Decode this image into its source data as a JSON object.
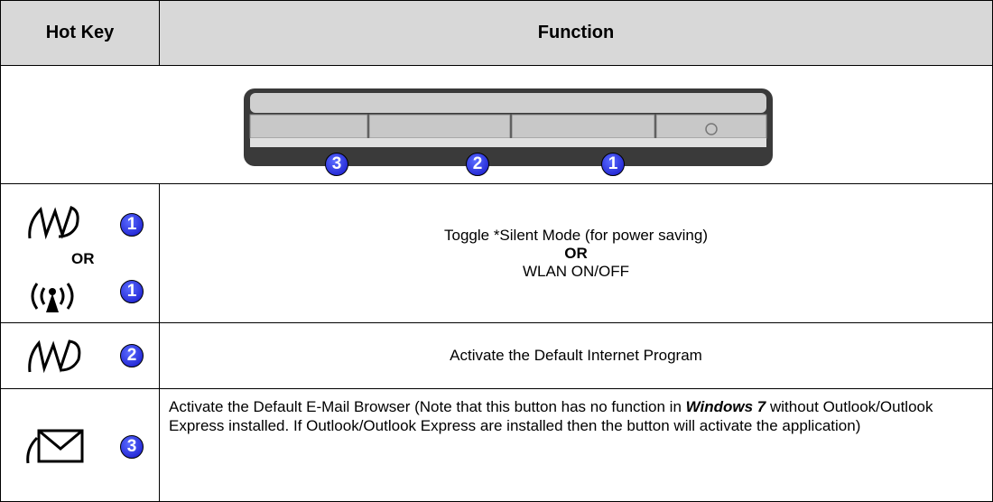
{
  "header": {
    "hot_key": "Hot Key",
    "function": "Function"
  },
  "panel": {
    "badges": [
      "3",
      "2",
      "1"
    ]
  },
  "rows": [
    {
      "hot_key": {
        "badges": [
          "1",
          "1"
        ],
        "separator": "OR"
      },
      "function": [
        "Toggle *Silent Mode (for power saving)",
        "OR",
        "WLAN ON/OFF"
      ]
    },
    {
      "hot_key": {
        "badges": [
          "2"
        ]
      },
      "function": [
        "Activate the Default Internet Program"
      ]
    },
    {
      "hot_key": {
        "badges": [
          "3"
        ]
      },
      "function": [
        "Activate the Default E-Mail Browser (Note that this button has no function in ",
        "Windows 7",
        " without Outlook/Outlook Express installed. If Outlook/Outlook Express are installed then the button will activate the application)"
      ]
    }
  ]
}
